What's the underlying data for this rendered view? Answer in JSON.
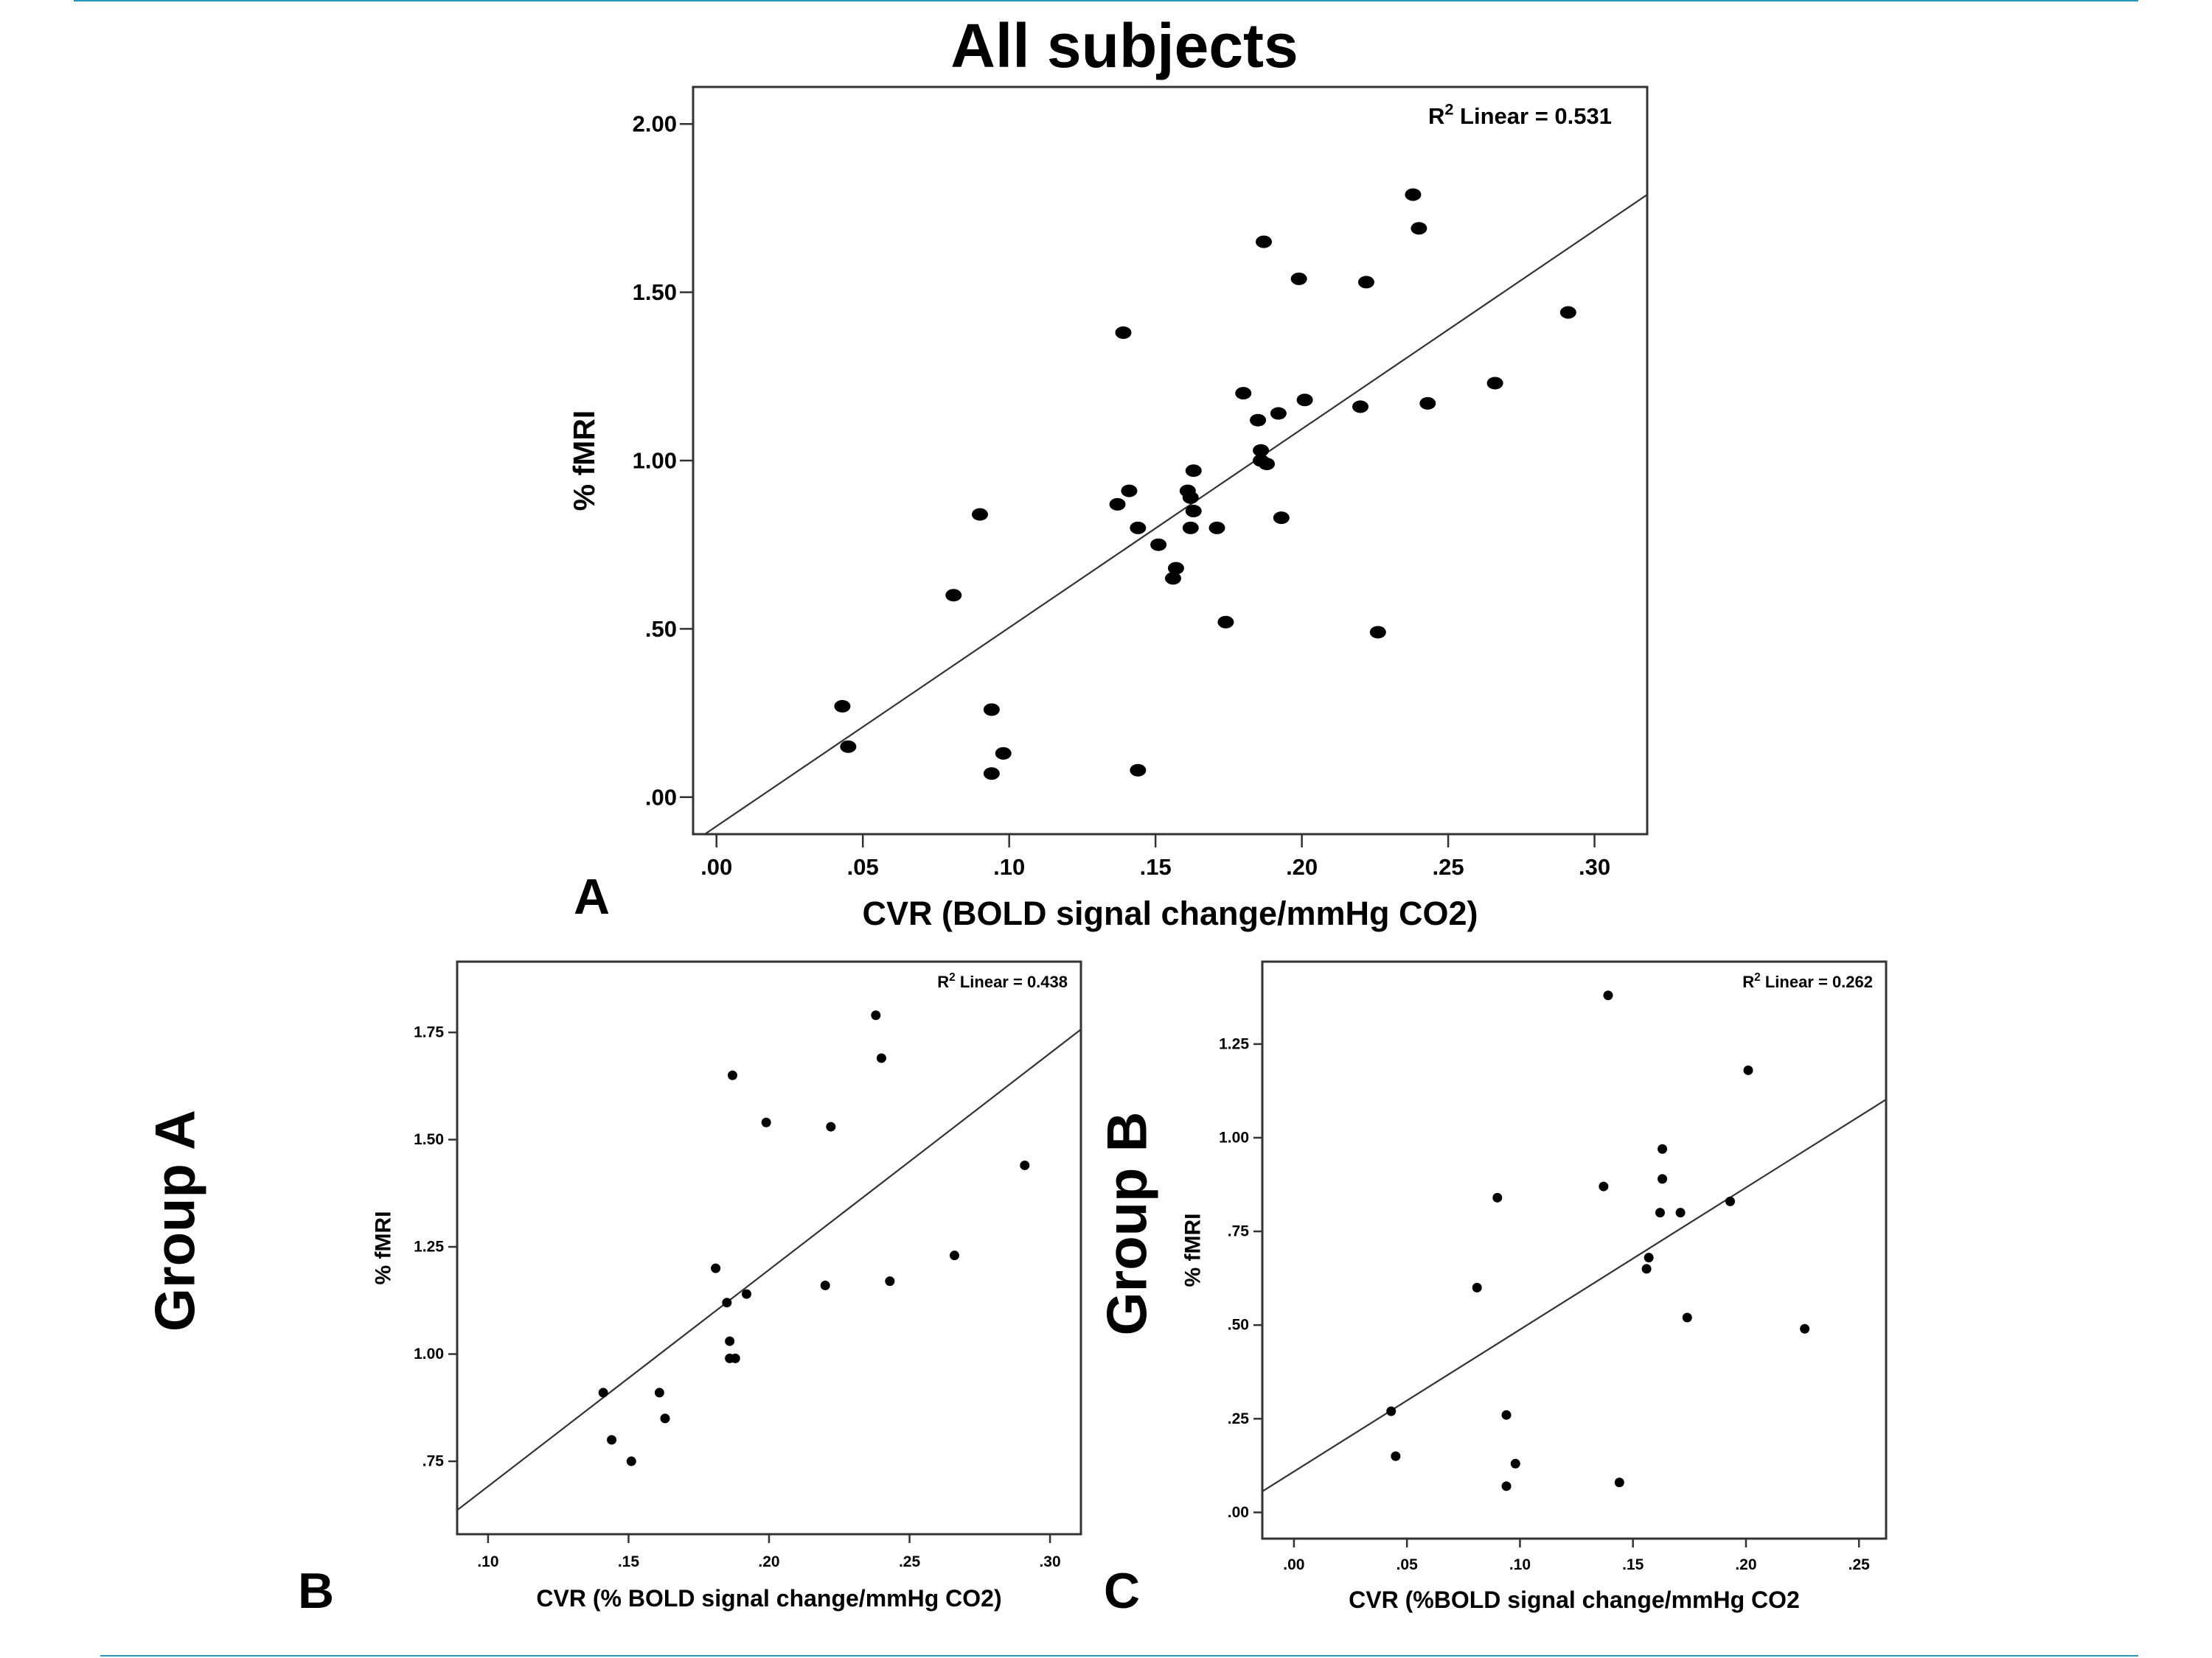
{
  "page": {
    "title": "All subjects",
    "accent_color": "#1e9bc4",
    "panel_labels": [
      "A",
      "B",
      "C"
    ],
    "group_labels": [
      "Group A",
      "Group B"
    ]
  },
  "chart_data": [
    {
      "id": "A",
      "type": "scatter",
      "title": "All subjects",
      "xlabel": "CVR (BOLD signal change/mmHg CO2)",
      "ylabel": "% fMRI",
      "xlim": [
        -0.008,
        0.318
      ],
      "ylim": [
        -0.11,
        2.11
      ],
      "xticks": [
        0.0,
        0.05,
        0.1,
        0.15,
        0.2,
        0.25,
        0.3
      ],
      "xtick_labels": [
        ".00",
        ".05",
        ".10",
        ".15",
        ".20",
        ".25",
        ".30"
      ],
      "yticks": [
        0.0,
        0.5,
        1.0,
        1.5,
        2.0
      ],
      "ytick_labels": [
        ".00",
        ".50",
        "1.00",
        "1.50",
        "2.00"
      ],
      "annotation": {
        "prefix": "R",
        "sup": "2",
        "text": " Linear = 0.531"
      },
      "fit_line": {
        "x": [
          -0.004,
          0.318
        ],
        "y": [
          -0.11,
          1.79
        ]
      },
      "points": {
        "x": [
          0.043,
          0.045,
          0.081,
          0.09,
          0.094,
          0.094,
          0.098,
          0.137,
          0.139,
          0.141,
          0.144,
          0.144,
          0.151,
          0.156,
          0.157,
          0.161,
          0.162,
          0.162,
          0.163,
          0.163,
          0.171,
          0.174,
          0.18,
          0.185,
          0.186,
          0.186,
          0.187,
          0.188,
          0.192,
          0.193,
          0.199,
          0.201,
          0.22,
          0.222,
          0.226,
          0.238,
          0.24,
          0.243,
          0.266,
          0.291
        ],
        "y": [
          0.27,
          0.15,
          0.6,
          0.84,
          0.26,
          0.07,
          0.13,
          0.87,
          1.38,
          0.91,
          0.8,
          0.08,
          0.75,
          0.65,
          0.68,
          0.91,
          0.8,
          0.89,
          0.85,
          0.97,
          0.8,
          0.52,
          1.2,
          1.12,
          1.03,
          1.0,
          1.65,
          0.99,
          1.14,
          0.83,
          1.54,
          1.18,
          1.16,
          1.53,
          0.49,
          1.79,
          1.69,
          1.17,
          1.23,
          1.44
        ]
      }
    },
    {
      "id": "B",
      "type": "scatter",
      "group": "Group A",
      "xlabel": "CVR (% BOLD signal change/mmHg CO2)",
      "ylabel": "% fMRI",
      "xlim": [
        0.089,
        0.311
      ],
      "ylim": [
        0.58,
        1.915
      ],
      "xticks": [
        0.1,
        0.15,
        0.2,
        0.25,
        0.3
      ],
      "xtick_labels": [
        ".10",
        ".15",
        ".20",
        ".25",
        ".30"
      ],
      "yticks": [
        0.75,
        1.0,
        1.25,
        1.5,
        1.75
      ],
      "ytick_labels": [
        ".75",
        "1.00",
        "1.25",
        "1.50",
        "1.75"
      ],
      "annotation": {
        "prefix": "R",
        "sup": "2",
        "text": " Linear = 0.438"
      },
      "fit_line": {
        "x": [
          0.089,
          0.311
        ],
        "y": [
          0.636,
          1.757
        ]
      },
      "points": {
        "x": [
          0.141,
          0.144,
          0.151,
          0.161,
          0.163,
          0.181,
          0.185,
          0.186,
          0.186,
          0.187,
          0.188,
          0.192,
          0.199,
          0.22,
          0.222,
          0.238,
          0.24,
          0.243,
          0.266,
          0.291
        ],
        "y": [
          0.91,
          0.8,
          0.75,
          0.91,
          0.85,
          1.2,
          1.12,
          1.03,
          0.99,
          1.65,
          0.99,
          1.14,
          1.54,
          1.16,
          1.53,
          1.79,
          1.69,
          1.17,
          1.23,
          1.44
        ]
      }
    },
    {
      "id": "C",
      "type": "scatter",
      "group": "Group B",
      "xlabel": "CVR (%BOLD signal change/mmHg CO2",
      "ylabel": "% fMRI",
      "xlim": [
        -0.014,
        0.262
      ],
      "ylim": [
        -0.07,
        1.47
      ],
      "xticks": [
        0.0,
        0.05,
        0.1,
        0.15,
        0.2,
        0.25
      ],
      "xtick_labels": [
        ".00",
        ".05",
        ".10",
        ".15",
        ".20",
        ".25"
      ],
      "yticks": [
        0.0,
        0.25,
        0.5,
        0.75,
        1.0,
        1.25
      ],
      "ytick_labels": [
        ".00",
        ".25",
        ".50",
        ".75",
        "1.00",
        "1.25"
      ],
      "annotation": {
        "prefix": "R",
        "sup": "2",
        "text": " Linear = 0.262"
      },
      "fit_line": {
        "x": [
          -0.014,
          0.262
        ],
        "y": [
          0.056,
          1.102
        ]
      },
      "points": {
        "x": [
          0.043,
          0.045,
          0.081,
          0.09,
          0.094,
          0.094,
          0.098,
          0.137,
          0.139,
          0.144,
          0.156,
          0.157,
          0.162,
          0.163,
          0.163,
          0.171,
          0.174,
          0.193,
          0.201,
          0.226
        ],
        "y": [
          0.27,
          0.15,
          0.6,
          0.84,
          0.26,
          0.07,
          0.13,
          0.87,
          1.38,
          0.08,
          0.65,
          0.68,
          0.8,
          0.89,
          0.97,
          0.8,
          0.52,
          0.83,
          1.18,
          0.49
        ]
      }
    }
  ]
}
